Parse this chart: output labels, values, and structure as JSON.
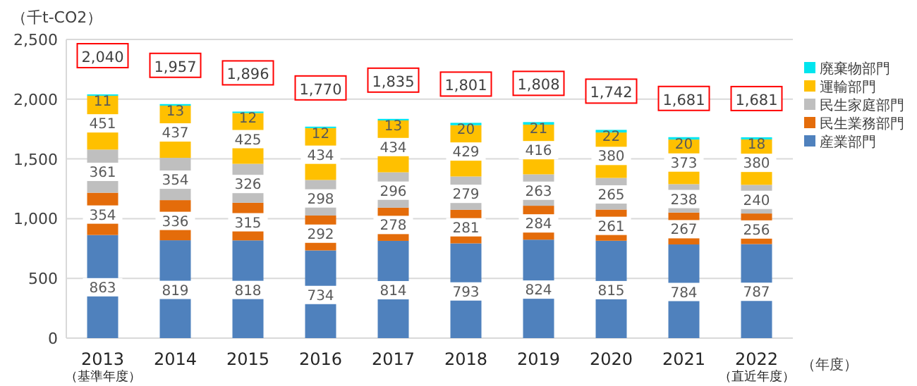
{
  "chart_data": {
    "type": "bar",
    "stacked": true,
    "ylabel": "（千t-CO2）",
    "xlabel": "（年度）",
    "categories": [
      "2013\n（基準年度）",
      "2014",
      "2015",
      "2016",
      "2017",
      "2018",
      "2019",
      "2020",
      "2021",
      "2022\n（直近年度）"
    ],
    "series": [
      {
        "name": "産業部門",
        "color": "#4f81bd",
        "values": [
          863,
          819,
          818,
          734,
          814,
          793,
          824,
          815,
          784,
          787
        ]
      },
      {
        "name": "民生業務部門",
        "color": "#e46c0a",
        "values": [
          354,
          336,
          315,
          292,
          278,
          281,
          284,
          261,
          267,
          256
        ]
      },
      {
        "name": "民生家庭部門",
        "color": "#bfbfbf",
        "values": [
          361,
          354,
          326,
          298,
          296,
          279,
          263,
          265,
          238,
          240
        ]
      },
      {
        "name": "運輸部門",
        "color": "#ffc000",
        "values": [
          451,
          437,
          425,
          434,
          434,
          429,
          416,
          380,
          373,
          380
        ]
      },
      {
        "name": "廃棄物部門",
        "color": "#00e5ee",
        "values": [
          11,
          13,
          12,
          12,
          13,
          20,
          21,
          22,
          20,
          18
        ]
      }
    ],
    "totals": [
      "2,040",
      "1,957",
      "1,896",
      "1,770",
      "1,835",
      "1,801",
      "1,808",
      "1,742",
      "1,681",
      "1,681"
    ],
    "ylim": [
      0,
      2500
    ],
    "yticks": [
      {
        "value": 0,
        "label": "0"
      },
      {
        "value": 500,
        "label": "500"
      },
      {
        "value": 1000,
        "label": "1,000"
      },
      {
        "value": 1500,
        "label": "1,500"
      },
      {
        "value": 2000,
        "label": "2,000"
      },
      {
        "value": 2500,
        "label": "2,500"
      }
    ],
    "grid": "y",
    "legend": "right",
    "data_labels": true
  }
}
